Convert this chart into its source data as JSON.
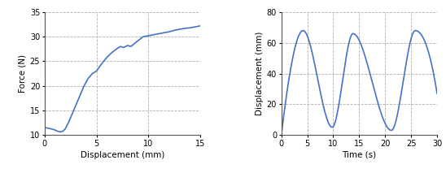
{
  "chart1": {
    "xlabel": "Displacement (mm)",
    "ylabel": "Force (N)",
    "xlim": [
      0,
      15
    ],
    "ylim": [
      10,
      35
    ],
    "xticks": [
      0,
      5,
      10,
      15
    ],
    "yticks": [
      10,
      15,
      20,
      25,
      30,
      35
    ],
    "line_color": "#4472c4",
    "line_width": 1.2,
    "x_pts": [
      0,
      0.3,
      0.7,
      1.0,
      1.2,
      1.5,
      1.8,
      2.0,
      2.3,
      2.6,
      3.0,
      3.4,
      3.8,
      4.2,
      4.6,
      5.0,
      5.5,
      6.0,
      6.5,
      7.0,
      7.3,
      7.6,
      8.0,
      8.3,
      8.6,
      9.0,
      9.5,
      10.0,
      10.5,
      11.0,
      11.5,
      12.0,
      12.5,
      13.0,
      13.5,
      14.0,
      14.5,
      15.0
    ],
    "y_pts": [
      11.5,
      11.4,
      11.2,
      11.0,
      10.8,
      10.6,
      10.8,
      11.3,
      12.5,
      14.0,
      16.0,
      18.0,
      20.0,
      21.5,
      22.5,
      23.0,
      24.5,
      25.8,
      26.8,
      27.6,
      28.0,
      27.8,
      28.2,
      28.0,
      28.5,
      29.2,
      30.0,
      30.2,
      30.4,
      30.6,
      30.8,
      31.0,
      31.3,
      31.5,
      31.7,
      31.8,
      32.0,
      32.2
    ]
  },
  "chart2": {
    "xlabel": "Time (s)",
    "ylabel": "Displacement (mm)",
    "xlim": [
      0,
      30
    ],
    "ylim": [
      0,
      80
    ],
    "xticks": [
      0,
      5,
      10,
      15,
      20,
      25,
      30
    ],
    "yticks": [
      0,
      20,
      40,
      60,
      80
    ],
    "line_color": "#4472c4",
    "line_width": 1.2,
    "peak1_t": 4.2,
    "peak1_v": 68,
    "trough1_t": 9.8,
    "trough1_v": 5,
    "peak2_t": 13.8,
    "peak2_v": 66,
    "trough2_t": 21.2,
    "trough2_v": 3,
    "peak3_t": 25.8,
    "peak3_v": 68,
    "end_t": 30,
    "end_v": 27
  },
  "background_color": "#ffffff",
  "grid_color": "#b0b0b0",
  "grid_linestyle": "--",
  "label_fontsize": 7.5,
  "tick_fontsize": 7
}
